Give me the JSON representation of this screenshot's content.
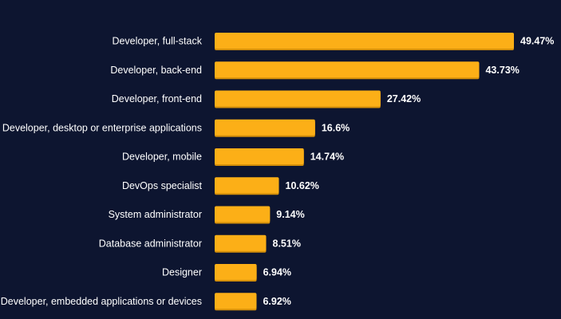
{
  "colors": {
    "background": "#0d1530",
    "bar": "#fcaf17",
    "bar_shadow": "#d48f0a",
    "text": "#ffffff"
  },
  "chart_data": {
    "type": "bar",
    "orientation": "horizontal",
    "value_suffix": "%",
    "categories": [
      "Developer, full-stack",
      "Developer, back-end",
      "Developer, front-end",
      "Developer, desktop or enterprise applications",
      "Developer, mobile",
      "DevOps specialist",
      "System administrator",
      "Database administrator",
      "Designer",
      "Developer, embedded applications or devices"
    ],
    "values": [
      49.47,
      43.73,
      27.42,
      16.6,
      14.74,
      10.62,
      9.14,
      8.51,
      6.94,
      6.92
    ],
    "value_labels": [
      "49.47%",
      "43.73%",
      "27.42%",
      "16.6%",
      "14.74%",
      "10.62%",
      "9.14%",
      "8.51%",
      "6.94%",
      "6.92%"
    ],
    "xlim": [
      0,
      49.47
    ],
    "grid": false,
    "legend": "none",
    "title": "",
    "xlabel": "",
    "ylabel": ""
  }
}
